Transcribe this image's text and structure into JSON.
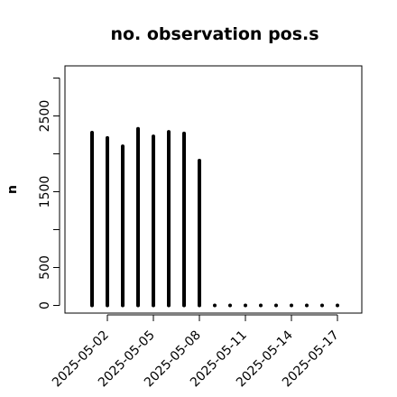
{
  "chart_data": {
    "type": "bar",
    "title": "no. observation pos.s",
    "xlabel": "",
    "ylabel": "n",
    "x": [
      "2025-05-01",
      "2025-05-02",
      "2025-05-03",
      "2025-05-04",
      "2025-05-05",
      "2025-05-06",
      "2025-05-07",
      "2025-05-08",
      "2025-05-09",
      "2025-05-10",
      "2025-05-11",
      "2025-05-12",
      "2025-05-13",
      "2025-05-14",
      "2025-05-15",
      "2025-05-16",
      "2025-05-17"
    ],
    "values": [
      2280,
      2210,
      2100,
      2330,
      2230,
      2290,
      2270,
      1910,
      0,
      0,
      0,
      0,
      0,
      0,
      0,
      0,
      0
    ],
    "x_tick_labels": [
      "2025-05-02",
      "2025-05-05",
      "2025-05-08",
      "2025-05-11",
      "2025-05-14",
      "2025-05-17"
    ],
    "y_tick_labels": [
      "0",
      "500",
      "1500",
      "2500"
    ],
    "highlight_tick": "2025-05-08",
    "highlight_color": "#228B22",
    "ylim": [
      0,
      3000
    ],
    "grid": false
  }
}
